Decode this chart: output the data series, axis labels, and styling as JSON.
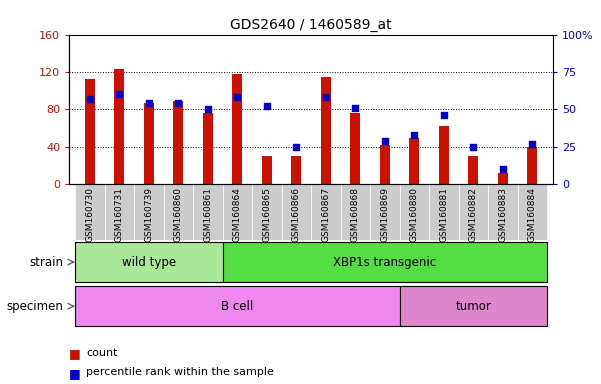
{
  "title": "GDS2640 / 1460589_at",
  "samples": [
    "GSM160730",
    "GSM160731",
    "GSM160739",
    "GSM160860",
    "GSM160861",
    "GSM160864",
    "GSM160865",
    "GSM160866",
    "GSM160867",
    "GSM160868",
    "GSM160869",
    "GSM160880",
    "GSM160881",
    "GSM160882",
    "GSM160883",
    "GSM160884"
  ],
  "counts": [
    113,
    123,
    87,
    89,
    76,
    118,
    30,
    30,
    115,
    76,
    42,
    49,
    62,
    30,
    12,
    40
  ],
  "percentiles": [
    57,
    60,
    54,
    54,
    50,
    58,
    52,
    25,
    58,
    51,
    29,
    33,
    46,
    25,
    10,
    27
  ],
  "bar_color": "#cc1100",
  "dot_color": "#0000cc",
  "ylim_left": [
    0,
    160
  ],
  "ylim_right": [
    0,
    100
  ],
  "yticks_left": [
    0,
    40,
    80,
    120,
    160
  ],
  "yticks_right": [
    0,
    25,
    50,
    75,
    100
  ],
  "yticklabels_right": [
    "0",
    "25",
    "50",
    "75",
    "100%"
  ],
  "strain_groups": [
    {
      "label": "wild type",
      "start": 0,
      "end": 4,
      "color": "#aae899"
    },
    {
      "label": "XBP1s transgenic",
      "start": 5,
      "end": 15,
      "color": "#55dd44"
    }
  ],
  "specimen_groups": [
    {
      "label": "B cell",
      "start": 0,
      "end": 10,
      "color": "#ee88ee"
    },
    {
      "label": "tumor",
      "start": 11,
      "end": 15,
      "color": "#dd88cc"
    }
  ],
  "strain_label": "strain",
  "specimen_label": "specimen",
  "legend_count_label": "count",
  "legend_pct_label": "percentile rank within the sample",
  "grid_color": "#000000",
  "bar_width": 0.35,
  "tick_label_bg": "#cccccc",
  "figsize": [
    6.01,
    3.84
  ],
  "dpi": 100
}
